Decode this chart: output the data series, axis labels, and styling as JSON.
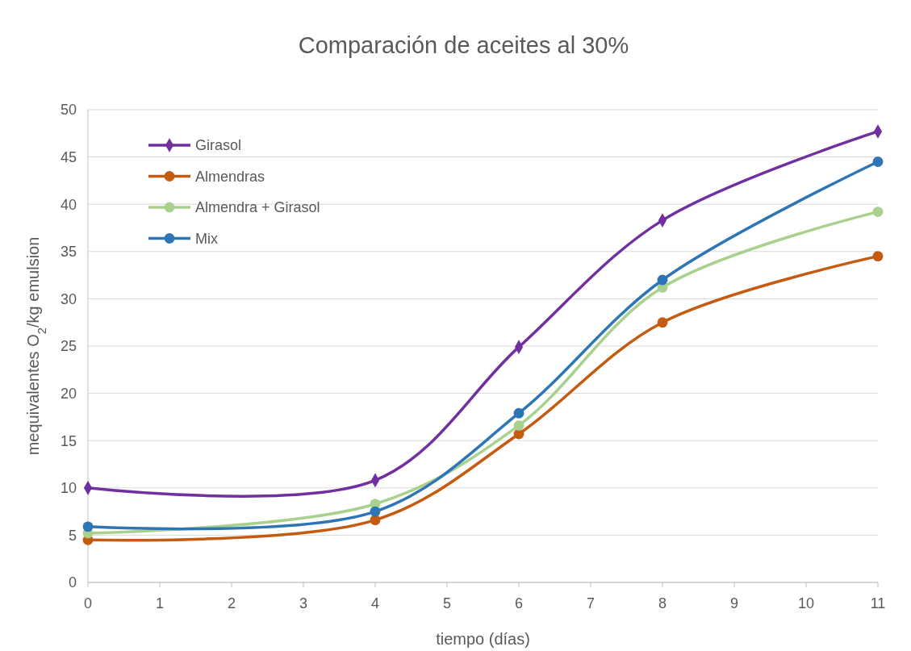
{
  "chart_data": {
    "type": "line",
    "title": "Comparación de aceites al 30%",
    "xlabel": "tiempo (días)",
    "ylabel": "mequivalentes O$_{2}$/kg emulsion",
    "x": [
      0,
      4,
      6,
      8,
      11
    ],
    "xlim": [
      0,
      11
    ],
    "xticks": [
      0,
      1,
      2,
      3,
      4,
      5,
      6,
      7,
      8,
      9,
      10,
      11
    ],
    "ylim": [
      0,
      50
    ],
    "yticks": [
      0,
      5,
      10,
      15,
      20,
      25,
      30,
      35,
      40,
      45,
      50
    ],
    "grid": "y",
    "legend": "top left",
    "line_style": "solid",
    "series": [
      {
        "name": "Girasol",
        "color": "#7030a0",
        "marker": "diamond",
        "values": [
          10.0,
          10.8,
          24.9,
          38.3,
          47.7
        ]
      },
      {
        "name": "Almendras",
        "color": "#c55a11",
        "marker": "circle",
        "values": [
          4.5,
          6.6,
          15.7,
          27.5,
          34.5
        ]
      },
      {
        "name": "Almendra + Girasol",
        "color": "#a9d18e",
        "marker": "circle",
        "values": [
          5.2,
          8.3,
          16.6,
          31.2,
          39.2
        ]
      },
      {
        "name": "Mix",
        "color": "#2e75b6",
        "marker": "circle",
        "values": [
          5.9,
          7.5,
          17.9,
          32.0,
          44.5
        ]
      }
    ]
  }
}
